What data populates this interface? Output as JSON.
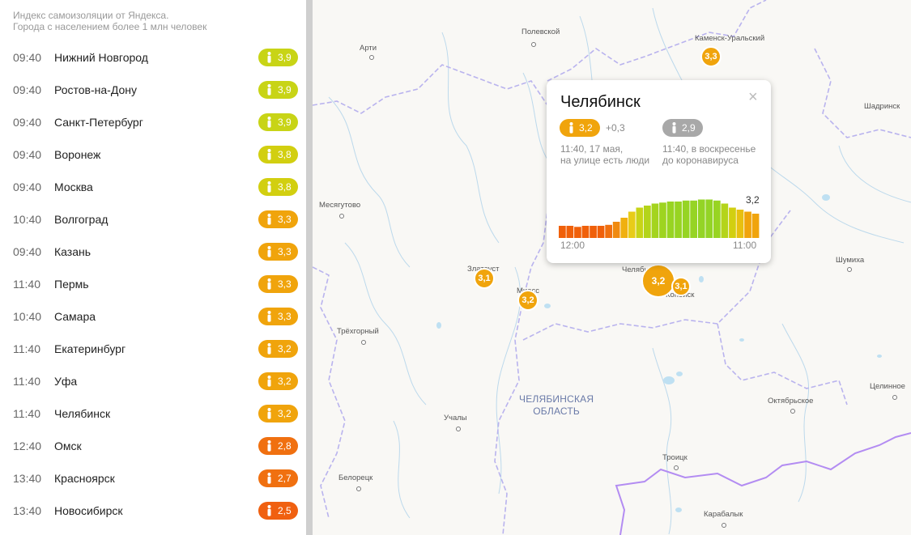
{
  "sidebar": {
    "header_line1": "Индекс самоизоляции от Яндекса.",
    "header_line2": "Города с населением более 1 млн человек",
    "cities": [
      {
        "time": "09:40",
        "name": "Нижний Новгород",
        "index": "3,9",
        "color": "#c8d416"
      },
      {
        "time": "09:40",
        "name": "Ростов-на-Дону",
        "index": "3,9",
        "color": "#c8d416"
      },
      {
        "time": "09:40",
        "name": "Санкт-Петербург",
        "index": "3,9",
        "color": "#c8d416"
      },
      {
        "time": "09:40",
        "name": "Воронеж",
        "index": "3,8",
        "color": "#d2cf10"
      },
      {
        "time": "09:40",
        "name": "Москва",
        "index": "3,8",
        "color": "#d2cf10"
      },
      {
        "time": "10:40",
        "name": "Волгоград",
        "index": "3,3",
        "color": "#f0a40c"
      },
      {
        "time": "09:40",
        "name": "Казань",
        "index": "3,3",
        "color": "#f0a40c"
      },
      {
        "time": "11:40",
        "name": "Пермь",
        "index": "3,3",
        "color": "#f0a40c"
      },
      {
        "time": "10:40",
        "name": "Самара",
        "index": "3,3",
        "color": "#f0a40c"
      },
      {
        "time": "11:40",
        "name": "Екатеринбург",
        "index": "3,2",
        "color": "#f0a40c"
      },
      {
        "time": "11:40",
        "name": "Уфа",
        "index": "3,2",
        "color": "#f0a40c"
      },
      {
        "time": "11:40",
        "name": "Челябинск",
        "index": "3,2",
        "color": "#f0a40c"
      },
      {
        "time": "12:40",
        "name": "Омск",
        "index": "2,8",
        "color": "#f07010"
      },
      {
        "time": "13:40",
        "name": "Красноярск",
        "index": "2,7",
        "color": "#f07010"
      },
      {
        "time": "13:40",
        "name": "Новосибирск",
        "index": "2,5",
        "color": "#f06010"
      }
    ]
  },
  "map": {
    "towns": [
      "Полевской",
      "Арти",
      "Каменск-Уральский",
      "Шадринск",
      "Месягутово",
      "Златоуст",
      "Миасс",
      "Челябинск",
      "Копейск",
      "Шумиха",
      "Трёхгорный",
      "Целинное",
      "Октябрьское",
      "Учалы",
      "Троицк",
      "Белорецк",
      "Карабалык"
    ],
    "region_line1": "ЧЕЛЯБИНСКАЯ",
    "region_line2": "ОБЛАСТЬ",
    "markers": [
      {
        "label": "3,3",
        "color": "#f0a40c"
      },
      {
        "label": "3,1",
        "color": "#f0a40c"
      },
      {
        "label": "3,2",
        "color": "#f0a40c"
      },
      {
        "label": "3,2",
        "color": "#f0a40c"
      },
      {
        "label": "3,1",
        "color": "#f0a40c"
      }
    ]
  },
  "popup": {
    "city": "Челябинск",
    "close_icon": "×",
    "current_index": "3,2",
    "delta": "+0,3",
    "baseline_index": "2,9",
    "current_note_line1": "11:40, 17 мая,",
    "current_note_line2": "на улице есть люди",
    "baseline_note_line1": "11:40, в воскресенье",
    "baseline_note_line2": "до коронавируса",
    "chart_start": "12:00",
    "chart_end": "11:00",
    "chart_last_value": "3,2"
  },
  "chart_data": {
    "type": "bar",
    "values": [
      2.6,
      2.6,
      2.55,
      2.6,
      2.6,
      2.6,
      2.65,
      2.8,
      3.0,
      3.3,
      3.5,
      3.6,
      3.7,
      3.75,
      3.8,
      3.8,
      3.85,
      3.85,
      3.9,
      3.9,
      3.85,
      3.7,
      3.5,
      3.4,
      3.3,
      3.2
    ],
    "colors": [
      "#f0600a",
      "#f0600a",
      "#f0600a",
      "#f0600a",
      "#f0600a",
      "#f0600a",
      "#f07010",
      "#f08a10",
      "#f0b010",
      "#e8cc18",
      "#c8d416",
      "#b4d41a",
      "#a4d41e",
      "#9ed420",
      "#98d422",
      "#98d422",
      "#96d424",
      "#96d424",
      "#94d426",
      "#94d426",
      "#98d422",
      "#b4d41a",
      "#d2cf10",
      "#e8c010",
      "#f0a40c",
      "#f0a40c"
    ]
  }
}
